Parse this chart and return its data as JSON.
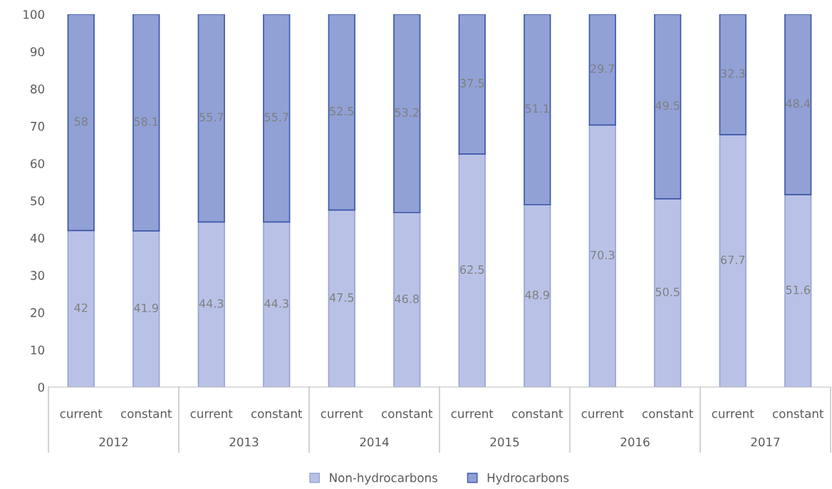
{
  "chart_data": {
    "type": "bar",
    "stacked": true,
    "categories": [
      "current",
      "constant",
      "current",
      "constant",
      "current",
      "constant",
      "current",
      "constant",
      "current",
      "constant",
      "current",
      "constant"
    ],
    "series": [
      {
        "name": "Non-hydrocarbons",
        "color": "#b9c2e6",
        "values": [
          42,
          41.9,
          44.3,
          44.3,
          47.5,
          46.8,
          62.5,
          48.9,
          70.3,
          50.5,
          67.7,
          51.6
        ]
      },
      {
        "name": "Hydrocarbons",
        "color": "#91a1d6",
        "values": [
          58,
          58.1,
          55.7,
          55.7,
          52.5,
          53.2,
          37.5,
          51.1,
          29.7,
          49.5,
          32.3,
          48.4
        ]
      }
    ],
    "annotations": [
      "2012",
      "2013",
      "2014",
      "2015",
      "2016",
      "2017"
    ],
    "ylim": [
      0,
      100
    ],
    "yticks": [
      0,
      10,
      20,
      30,
      40,
      50,
      60,
      70,
      80,
      90,
      100
    ],
    "data_labels": true,
    "grid": false,
    "legend": "bottom"
  }
}
